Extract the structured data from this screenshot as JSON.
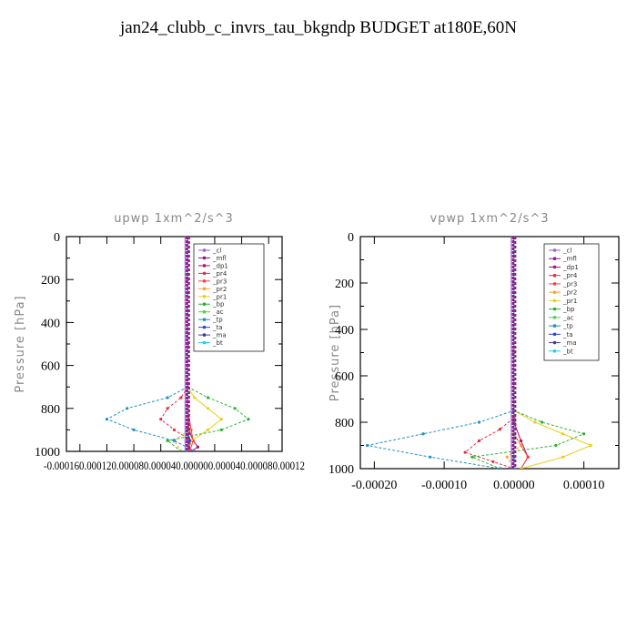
{
  "page_title": "jan24_clubb_c_invrs_tau_bkgndp  BUDGET at180E,60N",
  "chart_data": [
    {
      "type": "line",
      "title": "upwp   1xm^2/s^3",
      "ylabel": "Pressure [hPa]",
      "y_ticks": [
        "0",
        "200",
        "400",
        "600",
        "800",
        "1000"
      ],
      "x_tick_label_run": "-0.000160.000120.000080.000040.000000.000040.000080.00012",
      "ylim": [
        0,
        1000
      ],
      "xlim": [
        -0.00018,
        0.00014
      ],
      "legend": [
        "_cl",
        "_mfl",
        "_dp1",
        "_pr4",
        "_pr3",
        "_pr2",
        "_pr1",
        "_bp",
        "_ac",
        "_tp",
        "_ta",
        "_ma",
        "_bt"
      ],
      "colors": [
        "#9a5fd0",
        "#8b1a8b",
        "#b0106a",
        "#e0304a",
        "#ff4040",
        "#ffa030",
        "#e8d020",
        "#30b030",
        "#50d050",
        "#2090c0",
        "#3040e0",
        "#404080",
        "#20d0e0"
      ],
      "series": [
        {
          "name": "_cl",
          "y": [
            0,
            200,
            500,
            700,
            800,
            900,
            950,
            1000
          ],
          "x": [
            0,
            0,
            0,
            0,
            0,
            0,
            0,
            0
          ]
        },
        {
          "name": "_mfl",
          "y": [
            0,
            200,
            500,
            700,
            800,
            900,
            950,
            1000
          ],
          "x": [
            0,
            0,
            0,
            0,
            0,
            0,
            0,
            0
          ]
        },
        {
          "name": "_dp1",
          "y": [
            0,
            700,
            800,
            900,
            950,
            980,
            1000
          ],
          "x": [
            0,
            0,
            0,
            2e-06,
            8e-06,
            1.5e-05,
            5e-06
          ]
        },
        {
          "name": "_pr4",
          "y": [
            0,
            700,
            750,
            800,
            850,
            900,
            950,
            1000
          ],
          "x": [
            0,
            0,
            -1e-05,
            -3e-05,
            -4e-05,
            -2e-05,
            5e-06,
            2e-06
          ]
        },
        {
          "name": "_pr3",
          "y": [
            0,
            800,
            900,
            950,
            1000
          ],
          "x": [
            0,
            0,
            5e-06,
            8e-06,
            3e-06
          ]
        },
        {
          "name": "_pr2",
          "y": [
            0,
            800,
            900,
            950,
            1000
          ],
          "x": [
            0,
            0,
            3e-06,
            -2e-05,
            -1e-05
          ]
        },
        {
          "name": "_pr1",
          "y": [
            0,
            700,
            750,
            800,
            850,
            900,
            950,
            1000
          ],
          "x": [
            0,
            0,
            1e-05,
            3e-05,
            5e-05,
            3e-05,
            5e-06,
            0
          ]
        },
        {
          "name": "_bp",
          "y": [
            0,
            700,
            750,
            800,
            850,
            900,
            950,
            1000
          ],
          "x": [
            0,
            0,
            3e-05,
            7e-05,
            9e-05,
            5e-05,
            -3e-05,
            -1e-05
          ]
        },
        {
          "name": "_ac",
          "y": [
            0,
            900,
            950,
            1000
          ],
          "x": [
            0,
            0,
            2e-06,
            0
          ]
        },
        {
          "name": "_tp",
          "y": [
            0,
            700,
            750,
            800,
            850,
            900,
            950,
            1000
          ],
          "x": [
            0,
            0,
            -3e-05,
            -9e-05,
            -0.00012,
            -8e-05,
            -2e-05,
            1e-05
          ]
        },
        {
          "name": "_ta",
          "y": [
            0,
            900,
            950,
            1000
          ],
          "x": [
            0,
            0,
            3e-06,
            1e-06
          ]
        },
        {
          "name": "_ma",
          "y": [
            0,
            1000
          ],
          "x": [
            0,
            0
          ]
        },
        {
          "name": "_bt",
          "y": [
            0,
            1000
          ],
          "x": [
            0,
            0
          ]
        }
      ]
    },
    {
      "type": "line",
      "title": "vpwp   1xm^2/s^3",
      "ylabel": "Pressure [hPa]",
      "y_ticks": [
        "0",
        "200",
        "400",
        "600",
        "800",
        "1000"
      ],
      "x_ticks": [
        "-0.00020",
        "-0.00010",
        "0.00000",
        "0.00010"
      ],
      "x_tick_values": [
        -0.0002,
        -0.0001,
        0,
        0.0001
      ],
      "ylim": [
        0,
        1000
      ],
      "xlim": [
        -0.00022,
        0.00015
      ],
      "legend": [
        "_cl",
        "_mfl",
        "_dp1",
        "_pr4",
        "_pr3",
        "_pr2",
        "_pr1",
        "_bp",
        "_ac",
        "_tp",
        "_ta",
        "_ma",
        "_bt"
      ],
      "colors": [
        "#9a5fd0",
        "#8b1a8b",
        "#b0106a",
        "#e0304a",
        "#ff4040",
        "#ffa030",
        "#e8d020",
        "#30b030",
        "#50d050",
        "#2090c0",
        "#3040e0",
        "#404080",
        "#20d0e0"
      ],
      "series": [
        {
          "name": "_cl",
          "y": [
            0,
            200,
            500,
            800,
            1000
          ],
          "x": [
            0,
            0,
            0,
            0,
            0
          ]
        },
        {
          "name": "_mfl",
          "y": [
            0,
            200,
            500,
            800,
            1000
          ],
          "x": [
            0,
            0,
            0,
            0,
            0
          ]
        },
        {
          "name": "_dp1",
          "y": [
            0,
            800,
            880,
            950,
            1000
          ],
          "x": [
            0,
            0,
            1e-05,
            2e-05,
            1e-05
          ]
        },
        {
          "name": "_pr4",
          "y": [
            0,
            780,
            830,
            880,
            930,
            970,
            1000
          ],
          "x": [
            0,
            0,
            -2e-05,
            -5e-05,
            -7e-05,
            -3e-05,
            0
          ]
        },
        {
          "name": "_pr3",
          "y": [
            0,
            850,
            900,
            950,
            1000
          ],
          "x": [
            0,
            0,
            1e-05,
            2e-05,
            1e-05
          ]
        },
        {
          "name": "_pr2",
          "y": [
            0,
            850,
            900,
            950,
            1000
          ],
          "x": [
            0,
            0,
            1e-05,
            -1e-05,
            0
          ]
        },
        {
          "name": "_pr1",
          "y": [
            0,
            750,
            800,
            850,
            900,
            950,
            1000
          ],
          "x": [
            0,
            0,
            3e-05,
            7e-05,
            0.00011,
            7e-05,
            1e-05
          ]
        },
        {
          "name": "_bp",
          "y": [
            0,
            750,
            800,
            850,
            900,
            950,
            1000
          ],
          "x": [
            0,
            0,
            4e-05,
            0.0001,
            6e-05,
            -6e-05,
            -2e-05
          ]
        },
        {
          "name": "_ac",
          "y": [
            0,
            950,
            1000
          ],
          "x": [
            0,
            0,
            0
          ]
        },
        {
          "name": "_tp",
          "y": [
            0,
            750,
            800,
            850,
            900,
            950,
            1000
          ],
          "x": [
            0,
            0,
            -5e-05,
            -0.00013,
            -0.00021,
            -0.00012,
            -2e-05
          ]
        },
        {
          "name": "_ta",
          "y": [
            0,
            950,
            1000
          ],
          "x": [
            0,
            0,
            0
          ]
        },
        {
          "name": "_ma",
          "y": [
            0,
            1000
          ],
          "x": [
            0,
            0
          ]
        },
        {
          "name": "_bt",
          "y": [
            0,
            1000
          ],
          "x": [
            0,
            0
          ]
        }
      ]
    }
  ]
}
